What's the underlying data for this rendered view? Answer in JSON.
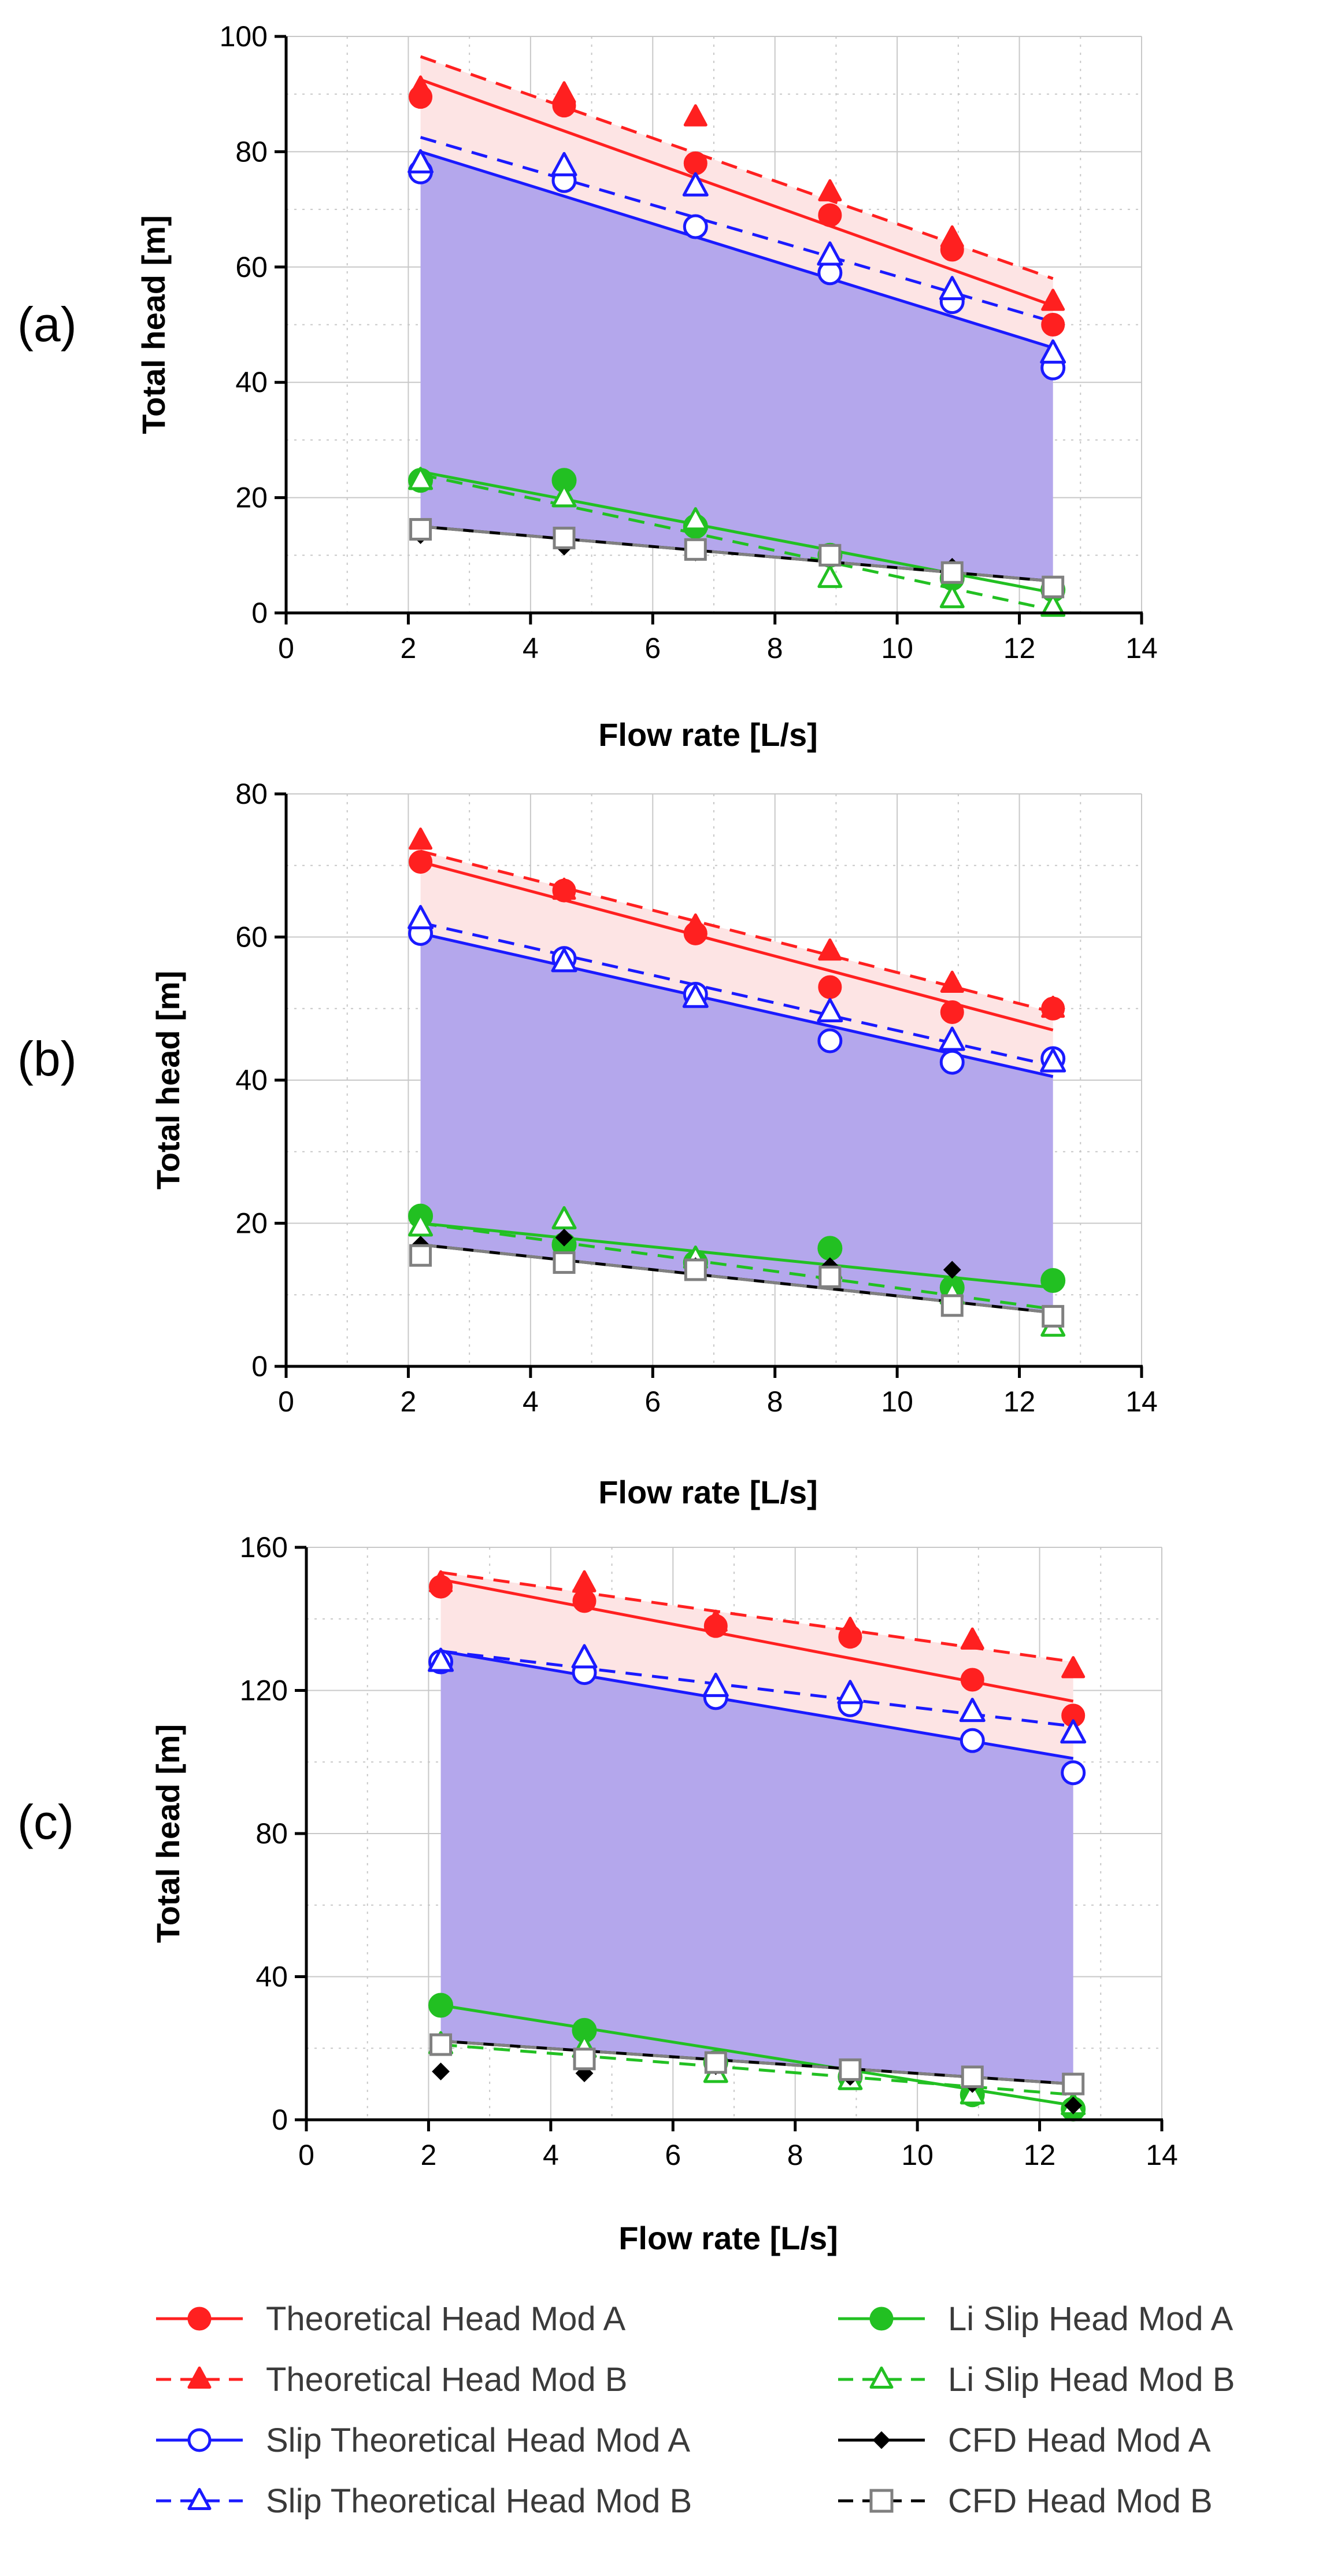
{
  "chart_data": [
    {
      "type": "scatter",
      "panel_label": "(a)",
      "xlabel": "Flow rate [L/s]",
      "ylabel": "Total head [m]",
      "xlim": [
        0,
        14
      ],
      "ylim": [
        0,
        100
      ],
      "x_ticks": [
        "0",
        "2",
        "4",
        "6",
        "8",
        "10",
        "12",
        "14"
      ],
      "y_ticks": [
        "0",
        "20",
        "40",
        "60",
        "80",
        "100"
      ],
      "grid": true,
      "x": [
        2.2,
        4.55,
        6.7,
        8.9,
        10.9,
        12.55
      ],
      "series": [
        {
          "name": "Theoretical Head Mod A",
          "values": [
            89.5,
            88,
            78,
            69,
            63,
            50
          ],
          "fit": [
            92.5,
            53.3
          ]
        },
        {
          "name": "Theoretical Head Mod B",
          "values": [
            91,
            90,
            86,
            73,
            65,
            54
          ],
          "fit": [
            96.5,
            58
          ]
        },
        {
          "name": "Slip Theoretical Head Mod A",
          "values": [
            76.5,
            75,
            67,
            59,
            54,
            42.5
          ],
          "fit": [
            80,
            46
          ]
        },
        {
          "name": "Slip Theoretical Head Mod B",
          "values": [
            78,
            77.5,
            74,
            62,
            56,
            45
          ],
          "fit": [
            82.5,
            50.5
          ]
        },
        {
          "name": "Li Slip Head Mod A",
          "values": [
            23,
            23,
            15,
            10,
            6,
            4
          ],
          "fit": [
            24.5,
            3.5
          ]
        },
        {
          "name": "Li Slip Head Mod B",
          "values": [
            23,
            20,
            16,
            6,
            2.5,
            1
          ],
          "fit": [
            24,
            0.5
          ]
        },
        {
          "name": "CFD Head Mod A",
          "values": [
            13.5,
            11.5,
            10.5,
            9.5,
            8,
            4
          ],
          "fit": [
            15,
            5.5
          ]
        },
        {
          "name": "CFD Head Mod B",
          "values": [
            14.5,
            13,
            11,
            10,
            7,
            4.5
          ],
          "fit": [
            15,
            5.5
          ]
        }
      ]
    },
    {
      "type": "scatter",
      "panel_label": "(b)",
      "xlabel": "Flow rate [L/s]",
      "ylabel": "Total head [m]",
      "xlim": [
        0,
        14
      ],
      "ylim": [
        0,
        80
      ],
      "x_ticks": [
        "0",
        "2",
        "4",
        "6",
        "8",
        "10",
        "12",
        "14"
      ],
      "y_ticks": [
        "0",
        "20",
        "40",
        "60",
        "80"
      ],
      "grid": true,
      "x": [
        2.2,
        4.55,
        6.7,
        8.9,
        10.9,
        12.55
      ],
      "series": [
        {
          "name": "Theoretical Head Mod A",
          "values": [
            70.5,
            66.5,
            60.5,
            53,
            49.5,
            50
          ],
          "fit": [
            70.5,
            47
          ]
        },
        {
          "name": "Theoretical Head Mod B",
          "values": [
            73.5,
            66.5,
            61.5,
            58,
            53.5,
            50
          ],
          "fit": [
            72,
            49.5
          ]
        },
        {
          "name": "Slip Theoretical Head Mod A",
          "values": [
            60.5,
            57,
            52,
            45.5,
            42.5,
            43
          ],
          "fit": [
            60.5,
            40.5
          ]
        },
        {
          "name": "Slip Theoretical Head Mod B",
          "values": [
            62.5,
            56.5,
            51.5,
            49.5,
            45.5,
            42.5
          ],
          "fit": [
            62,
            42
          ]
        },
        {
          "name": "Li Slip Head Mod A",
          "values": [
            21,
            17,
            14.5,
            16.5,
            11,
            12
          ],
          "fit": [
            20,
            11
          ]
        },
        {
          "name": "Li Slip Head Mod B",
          "values": [
            19.5,
            20.5,
            15,
            13.5,
            10,
            5.5
          ],
          "fit": [
            20,
            8
          ]
        },
        {
          "name": "CFD Head Mod A",
          "values": [
            17,
            18,
            14,
            14,
            13.5,
            7
          ],
          "fit": [
            17,
            7.5
          ]
        },
        {
          "name": "CFD Head Mod B",
          "values": [
            15.5,
            14.5,
            13.5,
            12.5,
            8.5,
            7
          ],
          "fit": [
            17,
            7.5
          ]
        }
      ]
    },
    {
      "type": "scatter",
      "panel_label": "(c)",
      "xlabel": "Flow rate [L/s]",
      "ylabel": "Total head [m]",
      "xlim": [
        0,
        14
      ],
      "ylim": [
        0,
        160
      ],
      "x_ticks": [
        "0",
        "2",
        "4",
        "6",
        "8",
        "10",
        "12",
        "14"
      ],
      "y_ticks": [
        "0",
        "40",
        "80",
        "120",
        "160"
      ],
      "grid": true,
      "x": [
        2.2,
        4.55,
        6.7,
        8.9,
        10.9,
        12.55
      ],
      "series": [
        {
          "name": "Theoretical Head Mod A",
          "values": [
            149,
            145,
            138,
            135,
            123,
            113
          ],
          "fit": [
            151,
            117
          ]
        },
        {
          "name": "Theoretical Head Mod B",
          "values": [
            150,
            150,
            139,
            137,
            134,
            126
          ],
          "fit": [
            153,
            128
          ]
        },
        {
          "name": "Slip Theoretical Head Mod A",
          "values": [
            128,
            125,
            118,
            116,
            106,
            97
          ],
          "fit": [
            131,
            101
          ]
        },
        {
          "name": "Slip Theoretical Head Mod B",
          "values": [
            128,
            129,
            121,
            119,
            114,
            108
          ],
          "fit": [
            131,
            110
          ]
        },
        {
          "name": "Li Slip Head Mod A",
          "values": [
            32,
            25,
            16,
            12,
            7,
            3
          ],
          "fit": [
            32,
            4
          ]
        },
        {
          "name": "Li Slip Head Mod B",
          "values": [
            21,
            20,
            13,
            11,
            7,
            4
          ],
          "fit": [
            21,
            7
          ]
        },
        {
          "name": "CFD Head Mod A",
          "values": [
            13.5,
            13,
            15,
            12,
            10,
            4
          ],
          "fit": [
            22,
            10
          ]
        },
        {
          "name": "CFD Head Mod B",
          "values": [
            21,
            17,
            16,
            14,
            12,
            10
          ],
          "fit": [
            22,
            10
          ]
        }
      ]
    }
  ],
  "legend": [
    {
      "label": "Theoretical Head Mod A",
      "color": "#ff2020",
      "marker": "circle",
      "filled": true,
      "dashed": false
    },
    {
      "label": "Li Slip Head Mod A",
      "color": "#22c022",
      "marker": "circle",
      "filled": true,
      "dashed": false
    },
    {
      "label": "Theoretical Head Mod B",
      "color": "#ff2020",
      "marker": "triangle",
      "filled": true,
      "dashed": true
    },
    {
      "label": "Li Slip Head Mod B",
      "color": "#22c022",
      "marker": "triangle",
      "filled": false,
      "dashed": true
    },
    {
      "label": "Slip Theoretical Head Mod A",
      "color": "#1a1aff",
      "marker": "circle",
      "filled": false,
      "dashed": false
    },
    {
      "label": "CFD Head Mod A",
      "color": "#000000",
      "marker": "diamond",
      "filled": true,
      "dashed": false
    },
    {
      "label": "Slip Theoretical Head Mod B",
      "color": "#1a1aff",
      "marker": "triangle",
      "filled": false,
      "dashed": true
    },
    {
      "label": "CFD Head Mod B",
      "color": "#000000",
      "marker": "square",
      "filled": false,
      "dashed": true
    }
  ],
  "colors": {
    "upper_band": "#fde4e4",
    "lower_band": "#b4a7ec",
    "grid": "#c8c8c8",
    "cfd_b_marker": "#808080"
  }
}
